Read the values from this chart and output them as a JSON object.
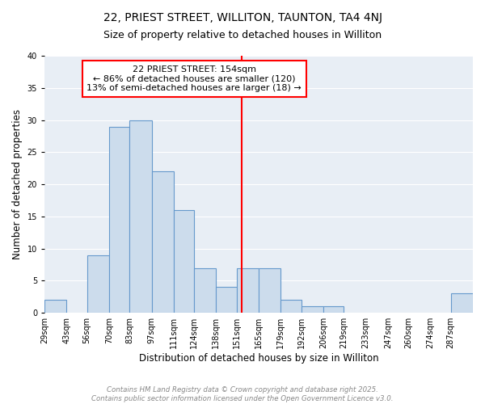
{
  "title": "22, PRIEST STREET, WILLITON, TAUNTON, TA4 4NJ",
  "subtitle": "Size of property relative to detached houses in Williton",
  "xlabel": "Distribution of detached houses by size in Williton",
  "ylabel": "Number of detached properties",
  "bin_edges": [
    29,
    43,
    56,
    70,
    83,
    97,
    111,
    124,
    138,
    151,
    165,
    179,
    192,
    206,
    219,
    233,
    247,
    260,
    274,
    287,
    301
  ],
  "bin_counts": [
    2,
    0,
    9,
    29,
    30,
    22,
    16,
    7,
    4,
    7,
    7,
    2,
    1,
    1,
    0,
    0,
    0,
    0,
    0,
    3
  ],
  "bar_facecolor": "#ccdcec",
  "bar_edgecolor": "#6699cc",
  "vline_x": 154,
  "vline_color": "red",
  "annotation_text": "22 PRIEST STREET: 154sqm\n← 86% of detached houses are smaller (120)\n13% of semi-detached houses are larger (18) →",
  "annotation_box_edgecolor": "red",
  "annotation_box_facecolor": "white",
  "ylim": [
    0,
    40
  ],
  "yticks": [
    0,
    5,
    10,
    15,
    20,
    25,
    30,
    35,
    40
  ],
  "bg_color": "#e8eef5",
  "footer_line1": "Contains HM Land Registry data © Crown copyright and database right 2025.",
  "footer_line2": "Contains public sector information licensed under the Open Government Licence v3.0.",
  "title_fontsize": 10,
  "subtitle_fontsize": 9,
  "axis_label_fontsize": 8.5,
  "tick_fontsize": 7,
  "annotation_fontsize": 8
}
